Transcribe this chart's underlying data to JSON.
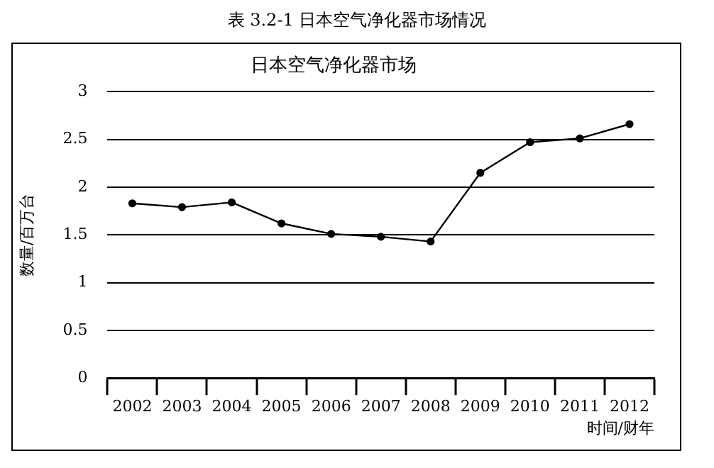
{
  "chart_data": {
    "type": "line",
    "title": "日本空气净化器市场",
    "annotations": [
      "表 3.2-1 日本空气净化器市场情况"
    ],
    "xlabel": "时间/财年",
    "ylabel": "数量/百万台",
    "categories": [
      "2002",
      "2003",
      "2004",
      "2005",
      "2006",
      "2007",
      "2008",
      "2009",
      "2010",
      "2011",
      "2012"
    ],
    "series": [
      {
        "color": "#000000",
        "values": [
          1.83,
          1.79,
          1.84,
          1.62,
          1.51,
          1.48,
          1.43,
          2.15,
          2.47,
          2.51,
          2.66
        ]
      }
    ],
    "ylim": [
      0,
      3
    ],
    "yticks": [
      0,
      0.5,
      1,
      1.5,
      2,
      2.5,
      3
    ],
    "grid": "y",
    "legend": false,
    "marker": "circle",
    "line_style": "solid"
  }
}
